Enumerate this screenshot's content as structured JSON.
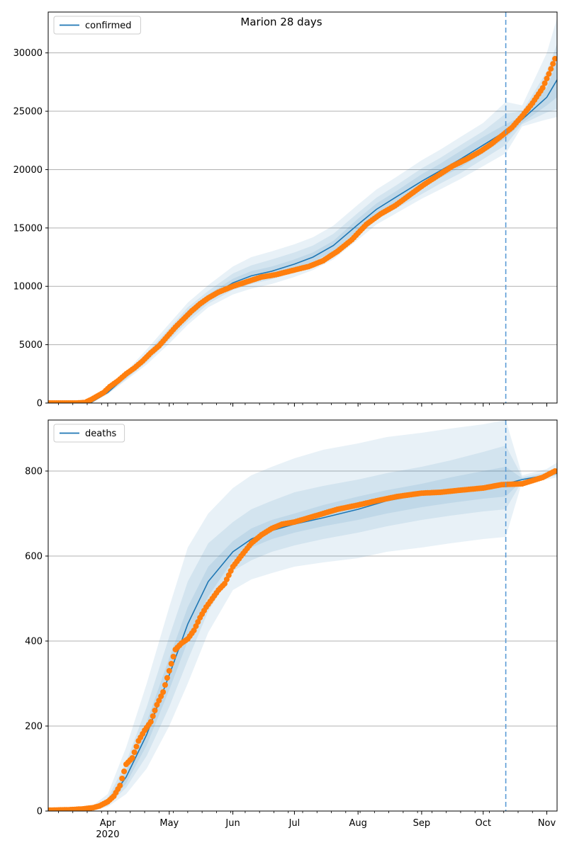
{
  "title": "Marion 28 days",
  "colors": {
    "model": "#1f77b4",
    "observed": "#ff7f0e",
    "band": "#1f77b4",
    "grid": "#b0b0b0",
    "forecast_line": "#5a9bd5"
  },
  "chart_data": [
    {
      "type": "line",
      "legend": "confirmed",
      "legend_position": "top-left",
      "x_range": [
        "2020-03-03",
        "2020-11-06"
      ],
      "ylim": [
        0,
        33500
      ],
      "yticks": [
        0,
        5000,
        10000,
        15000,
        20000,
        25000,
        30000
      ],
      "grid": "horizontal",
      "forecast_start": "2020-10-12",
      "model": {
        "name": "confirmed",
        "x": [
          "2020-03-03",
          "2020-03-24",
          "2020-04-01",
          "2020-04-10",
          "2020-04-20",
          "2020-05-01",
          "2020-05-10",
          "2020-05-20",
          "2020-06-01",
          "2020-06-10",
          "2020-06-20",
          "2020-07-01",
          "2020-07-10",
          "2020-07-20",
          "2020-08-01",
          "2020-08-10",
          "2020-08-20",
          "2020-09-01",
          "2020-09-10",
          "2020-09-20",
          "2020-10-01",
          "2020-10-12",
          "2020-10-20",
          "2020-11-01",
          "2020-11-06"
        ],
        "y": [
          0,
          50,
          900,
          2300,
          3900,
          5900,
          7600,
          9000,
          10300,
          10900,
          11300,
          11900,
          12500,
          13500,
          15300,
          16600,
          17700,
          19000,
          19900,
          20900,
          22100,
          23300,
          24300,
          26200,
          27700
        ],
        "bands": [
          {
            "lower": [
              0,
              30,
              750,
              1950,
              3300,
              5100,
              6700,
              8200,
              9300,
              9800,
              10200,
              10800,
              11400,
              12300,
              14000,
              15300,
              16300,
              17500,
              18300,
              19200,
              20300,
              21400,
              23700,
              24300,
              24500
            ],
            "upper": [
              0,
              80,
              1100,
              2700,
              4600,
              6800,
              8600,
              10100,
              11700,
              12500,
              13000,
              13600,
              14200,
              15200,
              17000,
              18300,
              19400,
              20800,
              21700,
              22800,
              24000,
              25800,
              25500,
              30000,
              33000
            ]
          },
          {
            "lower": [
              0,
              35,
              800,
              2050,
              3500,
              5400,
              7000,
              8500,
              9700,
              10200,
              10600,
              11200,
              11800,
              12700,
              14400,
              15700,
              16700,
              17900,
              18800,
              19700,
              20900,
              22100,
              23900,
              24900,
              25200
            ],
            "upper": [
              0,
              70,
              1000,
              2550,
              4300,
              6400,
              8200,
              9600,
              11100,
              11800,
              12300,
              12900,
              13500,
              14500,
              16300,
              17600,
              18700,
              20100,
              21000,
              22100,
              23300,
              24800,
              25000,
              28400,
              30800
            ]
          },
          {
            "lower": [
              0,
              40,
              850,
              2150,
              3650,
              5600,
              7250,
              8700,
              9950,
              10500,
              10900,
              11500,
              12100,
              13000,
              14800,
              16100,
              17100,
              18400,
              19300,
              20200,
              21400,
              22700,
              24000,
              25500,
              26200
            ],
            "upper": [
              0,
              60,
              950,
              2450,
              4150,
              6200,
              7950,
              9300,
              10650,
              11300,
              11700,
              12300,
              12900,
              13900,
              15800,
              17100,
              18200,
              19600,
              20500,
              21600,
              22800,
              23900,
              24600,
              27000,
              29300
            ]
          }
        ]
      },
      "observed": {
        "name": "confirmed",
        "x": [
          "2020-03-03",
          "2020-03-10",
          "2020-03-17",
          "2020-03-21",
          "2020-03-24",
          "2020-03-27",
          "2020-03-30",
          "2020-04-02",
          "2020-04-06",
          "2020-04-10",
          "2020-04-14",
          "2020-04-18",
          "2020-04-22",
          "2020-04-26",
          "2020-04-30",
          "2020-05-04",
          "2020-05-08",
          "2020-05-12",
          "2020-05-16",
          "2020-05-20",
          "2020-05-25",
          "2020-06-01",
          "2020-06-08",
          "2020-06-15",
          "2020-06-22",
          "2020-07-01",
          "2020-07-08",
          "2020-07-15",
          "2020-07-22",
          "2020-07-29",
          "2020-08-05",
          "2020-08-12",
          "2020-08-19",
          "2020-08-26",
          "2020-09-02",
          "2020-09-09",
          "2020-09-16",
          "2020-09-23",
          "2020-09-30",
          "2020-10-05",
          "2020-10-10",
          "2020-10-15",
          "2020-10-20",
          "2020-10-25",
          "2020-10-30",
          "2020-11-02",
          "2020-11-05"
        ],
        "y": [
          0,
          0,
          0,
          50,
          300,
          600,
          900,
          1400,
          1900,
          2500,
          3000,
          3600,
          4300,
          4900,
          5700,
          6500,
          7200,
          7900,
          8500,
          9000,
          9500,
          10000,
          10400,
          10800,
          11000,
          11400,
          11700,
          12200,
          13000,
          14000,
          15300,
          16200,
          16900,
          17800,
          18700,
          19500,
          20300,
          20900,
          21600,
          22200,
          22900,
          23600,
          24600,
          25700,
          27000,
          28200,
          29500
        ]
      }
    },
    {
      "type": "line",
      "legend": "deaths",
      "legend_position": "top-left",
      "x_range": [
        "2020-03-03",
        "2020-11-06"
      ],
      "ylim": [
        0,
        920
      ],
      "yticks": [
        0,
        200,
        400,
        600,
        800
      ],
      "grid": "horizontal",
      "forecast_start": "2020-10-12",
      "xticks": [
        {
          "date": "2020-04-01",
          "label": "Apr",
          "sublabel": "2020"
        },
        {
          "date": "2020-05-01",
          "label": "May"
        },
        {
          "date": "2020-06-01",
          "label": "Jun"
        },
        {
          "date": "2020-07-01",
          "label": "Jul"
        },
        {
          "date": "2020-08-01",
          "label": "Aug"
        },
        {
          "date": "2020-09-01",
          "label": "Sep"
        },
        {
          "date": "2020-10-01",
          "label": "Oct"
        },
        {
          "date": "2020-11-01",
          "label": "Nov"
        }
      ],
      "model": {
        "name": "deaths",
        "x": [
          "2020-03-03",
          "2020-03-24",
          "2020-04-01",
          "2020-04-10",
          "2020-04-20",
          "2020-05-01",
          "2020-05-10",
          "2020-05-20",
          "2020-06-01",
          "2020-06-10",
          "2020-06-20",
          "2020-07-01",
          "2020-07-15",
          "2020-08-01",
          "2020-08-15",
          "2020-09-01",
          "2020-09-15",
          "2020-10-01",
          "2020-10-12",
          "2020-10-20",
          "2020-11-01",
          "2020-11-06"
        ],
        "y": [
          0,
          5,
          20,
          80,
          180,
          320,
          440,
          540,
          610,
          640,
          660,
          675,
          690,
          710,
          730,
          745,
          755,
          765,
          770,
          780,
          790,
          795
        ],
        "bands": [
          {
            "lower": [
              0,
              0,
              10,
              40,
              100,
              200,
              300,
              420,
              520,
              545,
              560,
              575,
              585,
              595,
              610,
              620,
              630,
              640,
              645,
              775,
              780,
              785
            ],
            "upper": [
              0,
              10,
              40,
              150,
              300,
              480,
              620,
              700,
              760,
              790,
              810,
              830,
              850,
              865,
              880,
              890,
              900,
              910,
              920,
              790,
              805,
              820
            ]
          },
          {
            "lower": [
              0,
              2,
              13,
              55,
              130,
              245,
              355,
              470,
              565,
              590,
              610,
              625,
              640,
              655,
              670,
              685,
              695,
              705,
              710,
              777,
              785,
              790
            ],
            "upper": [
              0,
              8,
              30,
              115,
              245,
              410,
              540,
              630,
              680,
              710,
              730,
              750,
              765,
              780,
              795,
              810,
              825,
              845,
              860,
              786,
              797,
              805
            ]
          },
          {
            "lower": [
              0,
              3,
              16,
              65,
              155,
              285,
              400,
              505,
              590,
              620,
              640,
              655,
              670,
              685,
              700,
              715,
              725,
              735,
              740,
              778,
              787,
              792
            ],
            "upper": [
              0,
              6,
              25,
              95,
              210,
              360,
              480,
              575,
              635,
              665,
              685,
              700,
              720,
              740,
              755,
              770,
              785,
              800,
              810,
              783,
              793,
              800
            ]
          }
        ]
      },
      "observed": {
        "name": "deaths",
        "x": [
          "2020-03-03",
          "2020-03-13",
          "2020-03-20",
          "2020-03-25",
          "2020-03-28",
          "2020-04-01",
          "2020-04-04",
          "2020-04-07",
          "2020-04-10",
          "2020-04-13",
          "2020-04-16",
          "2020-04-19",
          "2020-04-22",
          "2020-04-25",
          "2020-04-28",
          "2020-05-01",
          "2020-05-04",
          "2020-05-07",
          "2020-05-10",
          "2020-05-13",
          "2020-05-16",
          "2020-05-19",
          "2020-05-22",
          "2020-05-25",
          "2020-05-28",
          "2020-06-01",
          "2020-06-05",
          "2020-06-10",
          "2020-06-15",
          "2020-06-20",
          "2020-06-25",
          "2020-07-01",
          "2020-07-08",
          "2020-07-15",
          "2020-07-22",
          "2020-08-01",
          "2020-08-10",
          "2020-08-20",
          "2020-09-01",
          "2020-09-10",
          "2020-09-20",
          "2020-10-01",
          "2020-10-10",
          "2020-10-20",
          "2020-10-30",
          "2020-11-05"
        ],
        "y": [
          2,
          3,
          5,
          8,
          12,
          22,
          35,
          60,
          110,
          125,
          165,
          190,
          210,
          250,
          280,
          330,
          380,
          395,
          405,
          425,
          455,
          480,
          500,
          520,
          535,
          575,
          600,
          630,
          650,
          665,
          675,
          680,
          690,
          700,
          710,
          720,
          730,
          740,
          748,
          750,
          755,
          760,
          768,
          770,
          785,
          800
        ]
      }
    }
  ]
}
